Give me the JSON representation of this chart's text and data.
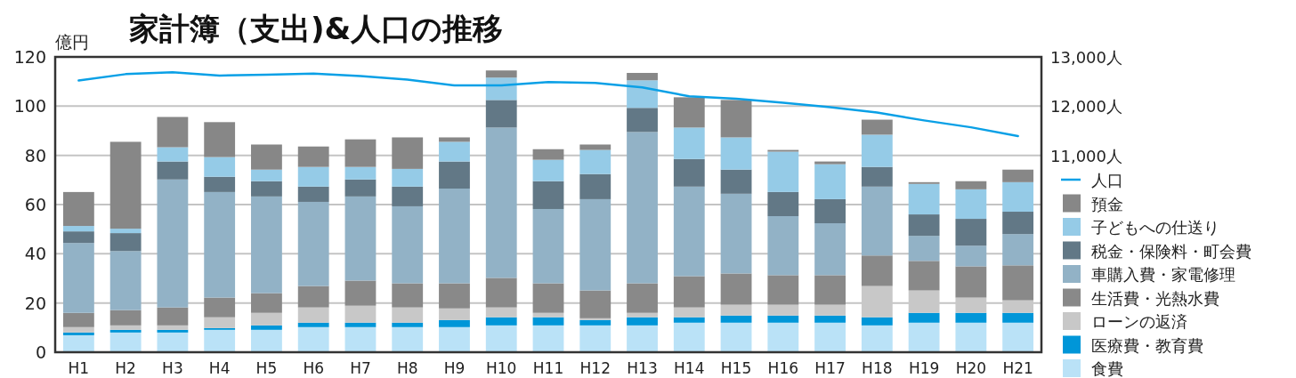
{
  "chart_data": {
    "type": "bar",
    "title": "家計簿（支出)&人口の推移",
    "ylabel": "億円",
    "stacked": true,
    "grid": "y",
    "legend": "right",
    "categories": [
      "H1",
      "H2",
      "H3",
      "H4",
      "H5",
      "H6",
      "H7",
      "H8",
      "H9",
      "H10",
      "H11",
      "H12",
      "H13",
      "H14",
      "H15",
      "H16",
      "H17",
      "H18",
      "H19",
      "H20",
      "H21"
    ],
    "ylim": [
      0,
      120
    ],
    "yticks": [
      0,
      20,
      40,
      60,
      80,
      100,
      120
    ],
    "y2lim": [
      7000,
      13000
    ],
    "y2ticks": [
      {
        "value": 11000,
        "label": "11,000人"
      },
      {
        "value": 12000,
        "label": "12,000人"
      },
      {
        "value": 13000,
        "label": "13,000人"
      }
    ],
    "series": [
      {
        "name": "食費",
        "color": "#bae2f7",
        "values": [
          6.9,
          8.0,
          8.0,
          9.1,
          9.1,
          10.2,
          10.2,
          10.2,
          10.2,
          10.9,
          10.9,
          10.9,
          10.9,
          12.0,
          12.0,
          12.0,
          12.0,
          10.9,
          12.0,
          12.0,
          12.0
        ]
      },
      {
        "name": "医療費・教育費",
        "color": "#0096d8",
        "values": [
          1.1,
          1.1,
          1.1,
          0.7,
          1.8,
          1.8,
          1.8,
          1.8,
          2.9,
          3.3,
          3.3,
          2.2,
          3.3,
          2.2,
          2.9,
          2.9,
          2.9,
          3.3,
          4.0,
          4.0,
          4.0
        ]
      },
      {
        "name": "ローンの返済",
        "color": "#c8c8c8",
        "values": [
          2.2,
          1.8,
          1.8,
          4.4,
          5.1,
          6.2,
          6.9,
          6.2,
          4.7,
          4.0,
          1.8,
          0.7,
          1.8,
          4.0,
          4.4,
          4.4,
          4.4,
          12.7,
          9.1,
          6.2,
          5.1
        ]
      },
      {
        "name": "生活費・光熱水費",
        "color": "#898989",
        "values": [
          5.8,
          6.2,
          7.3,
          8.0,
          8.0,
          8.7,
          10.2,
          9.8,
          10.2,
          12.0,
          12.0,
          11.3,
          12.0,
          12.7,
          12.7,
          12.0,
          12.0,
          12.4,
          12.0,
          12.7,
          14.2
        ]
      },
      {
        "name": "車購入費・家電修理",
        "color": "#92b2c6",
        "values": [
          28.4,
          24.0,
          52.0,
          42.9,
          39.3,
          34.2,
          34.2,
          31.3,
          38.5,
          61.1,
          30.2,
          37.1,
          61.5,
          36.4,
          32.4,
          24.0,
          21.1,
          28.0,
          10.2,
          8.4,
          12.7
        ]
      },
      {
        "name": "税金・保険料・町会費",
        "color": "#627886",
        "values": [
          4.7,
          7.3,
          7.3,
          6.2,
          6.2,
          6.2,
          6.9,
          8.0,
          11.0,
          11.2,
          11.3,
          10.2,
          9.8,
          11.2,
          9.8,
          9.8,
          9.8,
          8.0,
          8.7,
          10.9,
          9.1
        ]
      },
      {
        "name": "子どもへの仕送り",
        "color": "#95cbe7",
        "values": [
          2.2,
          1.8,
          5.8,
          8.0,
          4.7,
          8.0,
          5.1,
          7.2,
          8.0,
          9.1,
          8.7,
          9.8,
          11.2,
          12.8,
          13.1,
          16.4,
          14.2,
          13.1,
          12.4,
          12.0,
          12.0
        ]
      },
      {
        "name": "預金",
        "color": "#878787",
        "values": [
          13.8,
          35.3,
          12.3,
          14.2,
          10.2,
          8.3,
          11.2,
          12.8,
          1.8,
          2.9,
          4.3,
          2.2,
          3.0,
          12.3,
          15.2,
          0.7,
          1.1,
          6.1,
          0.7,
          3.3,
          5.1
        ]
      },
      {
        "name": "人口",
        "type": "line",
        "axis": "y2",
        "color": "#0aa0e6",
        "values": [
          12520,
          12650,
          12690,
          12620,
          12640,
          12660,
          12610,
          12540,
          12420,
          12420,
          12490,
          12470,
          12380,
          12200,
          12150,
          12070,
          11980,
          11870,
          11710,
          11570,
          11390
        ]
      }
    ]
  }
}
